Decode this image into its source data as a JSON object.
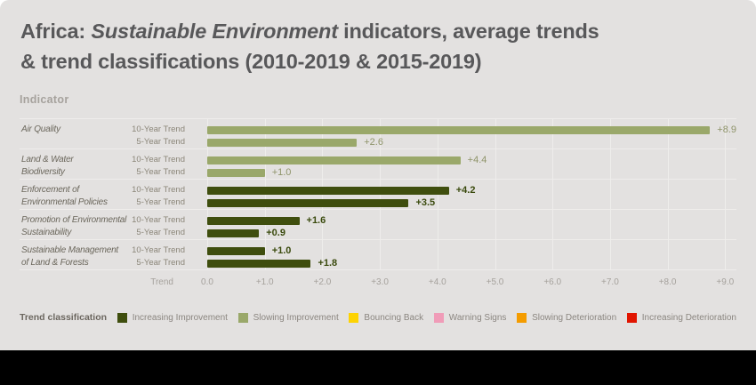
{
  "view": {
    "title": {
      "part1": "Africa: ",
      "italic": "Sustainable Environment",
      "part3": " indicators, average trends",
      "line2": "& trend classifications (2010-2019 & 2015-2019)"
    },
    "indicator_header": "Indicator",
    "groups": [
      {
        "name_line1": "Air Quality",
        "name_line2": "",
        "rows": [
          {
            "period": "10-Year Trend",
            "value": "+8.9",
            "value_num": 8.9,
            "bar_color": "#9aa86a",
            "label_color": "#8f946a"
          },
          {
            "period": "5-Year Trend",
            "value": "+2.6",
            "value_num": 2.6,
            "bar_color": "#9aa86a",
            "label_color": "#8f946a"
          }
        ]
      },
      {
        "name_line1": "Land & Water",
        "name_line2": "Biodiversity",
        "rows": [
          {
            "period": "10-Year Trend",
            "value": "+4.4",
            "value_num": 4.4,
            "bar_color": "#9aa86a",
            "label_color": "#8f946a"
          },
          {
            "period": "5-Year Trend",
            "value": "+1.0",
            "value_num": 1.0,
            "bar_color": "#9aa86a",
            "label_color": "#8f946a"
          }
        ]
      },
      {
        "name_line1": "Enforcement of",
        "name_line2": "Environmental Policies",
        "rows": [
          {
            "period": "10-Year Trend",
            "value": "+4.2",
            "value_num": 4.2,
            "bar_color": "#3f4e0e",
            "label_color": "#3a4a0d"
          },
          {
            "period": "5-Year Trend",
            "value": "+3.5",
            "value_num": 3.5,
            "bar_color": "#3f4e0e",
            "label_color": "#3a4a0d"
          }
        ]
      },
      {
        "name_line1": "Promotion of Environmental",
        "name_line2": "Sustainability",
        "rows": [
          {
            "period": "10-Year Trend",
            "value": "+1.6",
            "value_num": 1.6,
            "bar_color": "#3f4e0e",
            "label_color": "#3a4a0d"
          },
          {
            "period": "5-Year Trend",
            "value": "+0.9",
            "value_num": 0.9,
            "bar_color": "#3f4e0e",
            "label_color": "#3a4a0d"
          }
        ]
      },
      {
        "name_line1": "Sustainable Management",
        "name_line2": "of Land  & Forests",
        "rows": [
          {
            "period": "10-Year Trend",
            "value": "+1.0",
            "value_num": 1.0,
            "bar_color": "#3f4e0e",
            "label_color": "#3a4a0d"
          },
          {
            "period": "5-Year Trend",
            "value": "+1.8",
            "value_num": 1.8,
            "bar_color": "#3f4e0e",
            "label_color": "#3a4a0d"
          }
        ]
      }
    ],
    "axis": {
      "label": "Trend",
      "ticks": [
        "0.0",
        "+1.0",
        "+2.0",
        "+3.0",
        "+4.0",
        "+5.0",
        "+6.0",
        "+7.0",
        "+8.0",
        "+9.0"
      ]
    },
    "legend": {
      "title": "Trend classification",
      "items": [
        {
          "label": "Increasing Improvement",
          "color": "#3f4e0e"
        },
        {
          "label": "Slowing Improvement",
          "color": "#9aa86a"
        },
        {
          "label": "Bouncing Back",
          "color": "#fdd303"
        },
        {
          "label": "Warning Signs",
          "color": "#f09cb8"
        },
        {
          "label": "Slowing Deterioration",
          "color": "#f49c00"
        },
        {
          "label": "Increasing Deterioration",
          "color": "#e11500"
        }
      ]
    }
  },
  "chart_data": {
    "type": "bar",
    "orientation": "horizontal",
    "title": "Africa: Sustainable Environment indicators, average trends & trend classifications (2010-2019 & 2015-2019)",
    "xlabel": "Trend",
    "xlim": [
      0,
      9
    ],
    "x_ticks": [
      "0.0",
      "+1.0",
      "+2.0",
      "+3.0",
      "+4.0",
      "+5.0",
      "+6.0",
      "+7.0",
      "+8.0",
      "+9.0"
    ],
    "grid": true,
    "legend_position": "bottom",
    "groups": [
      {
        "indicator": "Air Quality",
        "series": [
          {
            "name": "10-Year Trend",
            "value": 8.9,
            "classification": "Slowing Improvement"
          },
          {
            "name": "5-Year Trend",
            "value": 2.6,
            "classification": "Slowing Improvement"
          }
        ]
      },
      {
        "indicator": "Land & Water Biodiversity",
        "series": [
          {
            "name": "10-Year Trend",
            "value": 4.4,
            "classification": "Slowing Improvement"
          },
          {
            "name": "5-Year Trend",
            "value": 1.0,
            "classification": "Slowing Improvement"
          }
        ]
      },
      {
        "indicator": "Enforcement of Environmental Policies",
        "series": [
          {
            "name": "10-Year Trend",
            "value": 4.2,
            "classification": "Increasing Improvement"
          },
          {
            "name": "5-Year Trend",
            "value": 3.5,
            "classification": "Increasing Improvement"
          }
        ]
      },
      {
        "indicator": "Promotion of Environmental Sustainability",
        "series": [
          {
            "name": "10-Year Trend",
            "value": 1.6,
            "classification": "Increasing Improvement"
          },
          {
            "name": "5-Year Trend",
            "value": 0.9,
            "classification": "Increasing Improvement"
          }
        ]
      },
      {
        "indicator": "Sustainable Management of Land & Forests",
        "series": [
          {
            "name": "10-Year Trend",
            "value": 1.0,
            "classification": "Increasing Improvement"
          },
          {
            "name": "5-Year Trend",
            "value": 1.8,
            "classification": "Increasing Improvement"
          }
        ]
      }
    ],
    "legend_entries": [
      "Increasing Improvement",
      "Slowing Improvement",
      "Bouncing Back",
      "Warning Signs",
      "Slowing Deterioration",
      "Increasing Deterioration"
    ]
  }
}
